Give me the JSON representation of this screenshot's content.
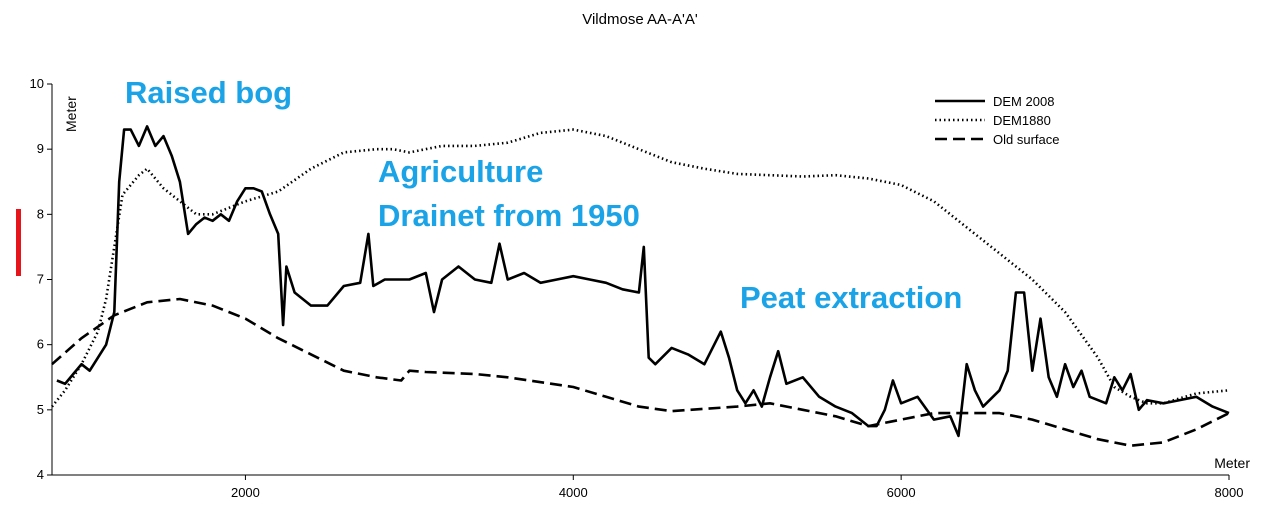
{
  "chart_data": {
    "type": "line",
    "title": "Vildmose AA-A'A'",
    "xlabel": "Meter",
    "ylabel": "Meter",
    "annotations": [
      "Raised bog",
      "Agriculture",
      "Drainet from 1950",
      "Peat extraction"
    ],
    "xlim": [
      820,
      8000
    ],
    "xticks": [
      2000,
      4000,
      6000,
      8000
    ],
    "ylim": [
      4,
      10
    ],
    "yticks": [
      4,
      5,
      6,
      7,
      8,
      9,
      10
    ],
    "grid": false,
    "legend": "upper right",
    "series": [
      {
        "name": "DEM 2008",
        "color": "#000000",
        "dash": "solid",
        "x": [
          850,
          900,
          950,
          1000,
          1050,
          1100,
          1150,
          1200,
          1230,
          1260,
          1300,
          1350,
          1400,
          1450,
          1500,
          1550,
          1600,
          1650,
          1700,
          1750,
          1800,
          1850,
          1900,
          1950,
          2000,
          2050,
          2100,
          2150,
          2200,
          2230,
          2250,
          2300,
          2400,
          2500,
          2600,
          2700,
          2750,
          2780,
          2850,
          3000,
          3100,
          3150,
          3200,
          3300,
          3400,
          3500,
          3550,
          3600,
          3700,
          3800,
          3900,
          4000,
          4100,
          4200,
          4300,
          4400,
          4430,
          4460,
          4500,
          4600,
          4700,
          4800,
          4900,
          4950,
          5000,
          5050,
          5100,
          5150,
          5200,
          5250,
          5300,
          5400,
          5500,
          5600,
          5700,
          5800,
          5850,
          5900,
          5950,
          6000,
          6100,
          6200,
          6300,
          6350,
          6400,
          6450,
          6500,
          6600,
          6650,
          6700,
          6750,
          6800,
          6850,
          6900,
          6950,
          7000,
          7050,
          7100,
          7150,
          7250,
          7300,
          7350,
          7400,
          7450,
          7500,
          7600,
          7700,
          7800,
          7900,
          8000
        ],
        "values": [
          5.45,
          5.4,
          5.55,
          5.7,
          5.6,
          5.8,
          6.0,
          6.5,
          8.5,
          9.3,
          9.3,
          9.05,
          9.35,
          9.05,
          9.2,
          8.9,
          8.5,
          7.7,
          7.85,
          7.95,
          7.9,
          8.0,
          7.9,
          8.2,
          8.4,
          8.4,
          8.35,
          8.0,
          7.7,
          6.3,
          7.2,
          6.8,
          6.6,
          6.6,
          6.9,
          6.95,
          7.7,
          6.9,
          7.0,
          7.0,
          7.1,
          6.5,
          7.0,
          7.2,
          7.0,
          6.95,
          7.55,
          7.0,
          7.1,
          6.95,
          7.0,
          7.05,
          7.0,
          6.95,
          6.85,
          6.8,
          7.5,
          5.8,
          5.7,
          5.95,
          5.85,
          5.7,
          6.2,
          5.8,
          5.3,
          5.1,
          5.3,
          5.05,
          5.5,
          5.9,
          5.4,
          5.5,
          5.2,
          5.05,
          4.95,
          4.75,
          4.75,
          5.0,
          5.45,
          5.1,
          5.2,
          4.85,
          4.9,
          4.6,
          5.7,
          5.3,
          5.05,
          5.3,
          5.6,
          6.8,
          6.8,
          5.6,
          6.4,
          5.5,
          5.2,
          5.7,
          5.35,
          5.6,
          5.2,
          5.1,
          5.5,
          5.3,
          5.55,
          5.0,
          5.15,
          5.1,
          5.15,
          5.2,
          5.05,
          4.95
        ]
      },
      {
        "name": "DEM1880",
        "color": "#000000",
        "dash": "dotted",
        "x": [
          820,
          900,
          1000,
          1100,
          1150,
          1200,
          1250,
          1350,
          1400,
          1500,
          1600,
          1700,
          1800,
          1900,
          2000,
          2200,
          2400,
          2600,
          2800,
          2900,
          3000,
          3200,
          3400,
          3600,
          3800,
          4000,
          4200,
          4400,
          4600,
          4800,
          5000,
          5200,
          5400,
          5600,
          5800,
          6000,
          6200,
          6400,
          6600,
          6800,
          7000,
          7200,
          7300,
          7400,
          7500,
          7600,
          7800,
          8000
        ],
        "values": [
          5.05,
          5.3,
          5.7,
          6.2,
          6.7,
          7.5,
          8.3,
          8.6,
          8.7,
          8.4,
          8.2,
          8.0,
          8.0,
          8.1,
          8.2,
          8.35,
          8.7,
          8.95,
          9.0,
          9.0,
          8.95,
          9.05,
          9.05,
          9.1,
          9.25,
          9.3,
          9.2,
          9.0,
          8.8,
          8.7,
          8.62,
          8.6,
          8.58,
          8.6,
          8.55,
          8.45,
          8.2,
          7.8,
          7.4,
          7.0,
          6.5,
          5.8,
          5.35,
          5.2,
          5.1,
          5.1,
          5.25,
          5.3
        ]
      },
      {
        "name": "Old surface",
        "color": "#000000",
        "dash": "dashed",
        "x": [
          820,
          1000,
          1200,
          1400,
          1600,
          1800,
          2000,
          2200,
          2400,
          2600,
          2800,
          2950,
          3000,
          3100,
          3400,
          3600,
          4000,
          4200,
          4400,
          4600,
          5000,
          5200,
          5400,
          5600,
          5800,
          6000,
          6200,
          6400,
          6600,
          6800,
          7000,
          7200,
          7400,
          7600,
          7800,
          8000
        ],
        "values": [
          5.7,
          6.1,
          6.45,
          6.65,
          6.7,
          6.6,
          6.4,
          6.1,
          5.85,
          5.6,
          5.5,
          5.45,
          5.6,
          5.58,
          5.55,
          5.5,
          5.35,
          5.2,
          5.05,
          4.98,
          5.05,
          5.1,
          5.0,
          4.9,
          4.75,
          4.85,
          4.95,
          4.95,
          4.95,
          4.85,
          4.7,
          4.55,
          4.45,
          4.5,
          4.7,
          4.95
        ]
      }
    ]
  }
}
